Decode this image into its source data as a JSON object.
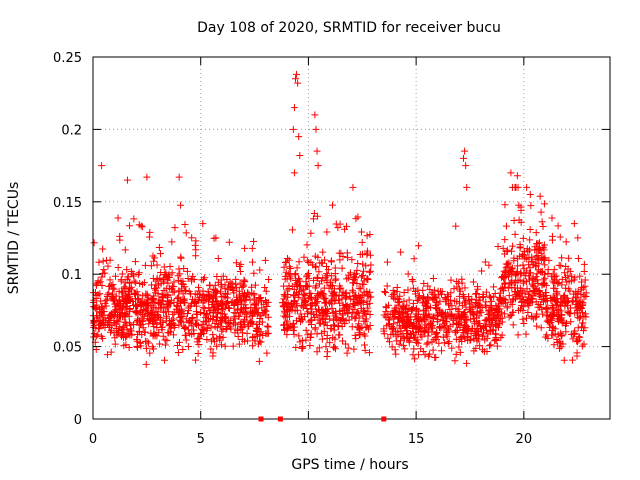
{
  "chart_data": {
    "type": "scatter",
    "title": "Day 108 of 2020, SRMTID for receiver bucu",
    "xlabel": "GPS time / hours",
    "ylabel": "SRMTID / TECUs",
    "xlim": [
      0,
      24
    ],
    "ylim": [
      0,
      0.25
    ],
    "grid": true,
    "marker": "+",
    "color": "#ff0000",
    "xticks": [
      {
        "value": 0,
        "label": "0"
      },
      {
        "value": 5,
        "label": "5"
      },
      {
        "value": 10,
        "label": "10"
      },
      {
        "value": 15,
        "label": "15"
      },
      {
        "value": 20,
        "label": "20"
      }
    ],
    "yticks": [
      {
        "value": 0,
        "label": "0"
      },
      {
        "value": 0.05,
        "label": "0.05"
      },
      {
        "value": 0.1,
        "label": "0.1"
      },
      {
        "value": 0.15,
        "label": "0.15"
      },
      {
        "value": 0.2,
        "label": "0.2"
      },
      {
        "value": 0.25,
        "label": "0.25"
      }
    ],
    "zero_markers_x": [
      7.8,
      8.7,
      13.5
    ],
    "outliers": [
      {
        "x": 0.4,
        "y": 0.175
      },
      {
        "x": 1.6,
        "y": 0.165
      },
      {
        "x": 2.5,
        "y": 0.167
      },
      {
        "x": 4.0,
        "y": 0.167
      },
      {
        "x": 9.3,
        "y": 0.2
      },
      {
        "x": 9.35,
        "y": 0.215
      },
      {
        "x": 9.4,
        "y": 0.235
      },
      {
        "x": 9.45,
        "y": 0.238
      },
      {
        "x": 9.5,
        "y": 0.232
      },
      {
        "x": 9.55,
        "y": 0.195
      },
      {
        "x": 9.6,
        "y": 0.182
      },
      {
        "x": 9.35,
        "y": 0.17
      },
      {
        "x": 10.3,
        "y": 0.21
      },
      {
        "x": 10.35,
        "y": 0.2
      },
      {
        "x": 10.4,
        "y": 0.185
      },
      {
        "x": 10.45,
        "y": 0.175
      },
      {
        "x": 17.2,
        "y": 0.18
      },
      {
        "x": 17.25,
        "y": 0.185
      },
      {
        "x": 17.3,
        "y": 0.175
      },
      {
        "x": 17.35,
        "y": 0.16
      },
      {
        "x": 19.4,
        "y": 0.17
      },
      {
        "x": 19.7,
        "y": 0.168
      },
      {
        "x": 20.3,
        "y": 0.155
      }
    ],
    "segments": [
      {
        "x_start": 0.0,
        "x_end": 7.2,
        "mean": 0.075,
        "spread": 0.04,
        "count": 900
      },
      {
        "x_start": 7.2,
        "x_end": 8.2,
        "mean": 0.07,
        "spread": 0.035,
        "count": 90
      },
      {
        "x_start": 8.8,
        "x_end": 12.9,
        "mean": 0.08,
        "spread": 0.045,
        "count": 500
      },
      {
        "x_start": 13.5,
        "x_end": 19.0,
        "mean": 0.07,
        "spread": 0.035,
        "count": 620
      },
      {
        "x_start": 19.0,
        "x_end": 21.0,
        "mean": 0.095,
        "spread": 0.05,
        "count": 260
      },
      {
        "x_start": 21.0,
        "x_end": 22.9,
        "mean": 0.075,
        "spread": 0.04,
        "count": 240
      }
    ]
  }
}
